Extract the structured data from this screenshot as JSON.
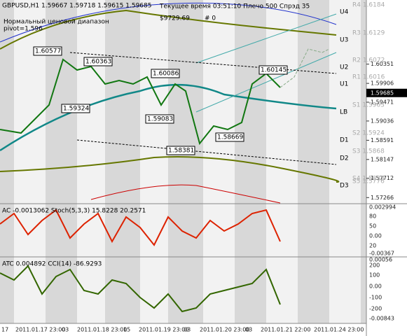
{
  "header": {
    "symbol": "GBPUSD,H1  1.59667 1.59718 1.59615 1.59685",
    "status": "Текущее время 03:51:10 Плечо 500 Спрэд 35",
    "balance": "$9729.69",
    "orders": "# 0",
    "range_title": "Нормальный ценовой диапазон",
    "pivot": "pivot=1.596"
  },
  "price_axis": {
    "ticks": [
      1.60351,
      1.59906,
      1.59471,
      1.59036,
      1.58591,
      1.58147,
      1.57712,
      1.57266
    ],
    "current": 1.59685
  },
  "levels": [
    {
      "label": "U4",
      "pivot": "R4 1.6184"
    },
    {
      "label": "U3",
      "pivot": "R3 1.6129"
    },
    {
      "label": "U2",
      "pivot": "R2 1.6072"
    },
    {
      "label": "U1",
      "pivot": "R1 1.6016"
    },
    {
      "label": "LB",
      "pivot": "S1 1.5963"
    },
    {
      "label": "D1",
      "pivot": "S2 1.5924"
    },
    {
      "label": "D2",
      "pivot": "S3 1.5868"
    },
    {
      "label": "D3",
      "pivot": "S4 1.5833"
    }
  ],
  "extra_pivot": "S5 1.5776",
  "price_tags": [
    "1.60577",
    "1.60363",
    "1.60086",
    "1.60145",
    "1.59324",
    "1.59083",
    "1.58669",
    "1.58381"
  ],
  "panel_ac": {
    "title": "AC -0.0013062  Stoch(5,3,3) 15.8228 20.2571",
    "ticks": [
      "0.002994",
      "80",
      "50",
      "0.00",
      "20",
      "-0.00367"
    ]
  },
  "panel_cci": {
    "title": "ATC 0.004892  CCI(14) -86.9293",
    "ticks": [
      "0.00056",
      "200",
      "100",
      "0.00",
      "-100",
      "-200",
      "-0.00843"
    ]
  },
  "time_axis": [
    "17",
    "2011.01.17 23:00",
    "03",
    "2011.01.18 23:00",
    "15",
    "2011.01.19 23:00",
    "03",
    "2011.01.20 23:00",
    "03",
    "2011.01.21 22:00",
    "2011.01.24 23:00"
  ]
}
